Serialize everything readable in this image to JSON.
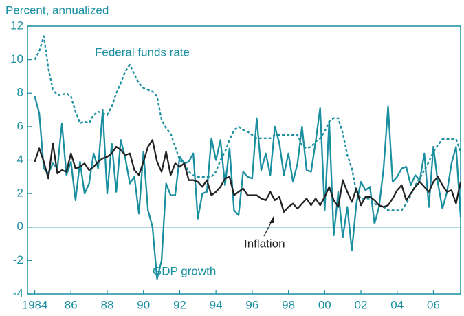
{
  "chart_data": {
    "type": "line",
    "y_label": "Percent, annualized",
    "x": [
      1984.0,
      1984.25,
      1984.5,
      1984.75,
      1985.0,
      1985.25,
      1985.5,
      1985.75,
      1986.0,
      1986.25,
      1986.5,
      1986.75,
      1987.0,
      1987.25,
      1987.5,
      1987.75,
      1988.0,
      1988.25,
      1988.5,
      1988.75,
      1989.0,
      1989.25,
      1989.5,
      1989.75,
      1990.0,
      1990.25,
      1990.5,
      1990.75,
      1991.0,
      1991.25,
      1991.5,
      1991.75,
      1992.0,
      1992.25,
      1992.5,
      1992.75,
      1993.0,
      1993.25,
      1993.5,
      1993.75,
      1994.0,
      1994.25,
      1994.5,
      1994.75,
      1995.0,
      1995.25,
      1995.5,
      1995.75,
      1996.0,
      1996.25,
      1996.5,
      1996.75,
      1997.0,
      1997.25,
      1997.5,
      1997.75,
      1998.0,
      1998.25,
      1998.5,
      1998.75,
      1999.0,
      1999.25,
      1999.5,
      1999.75,
      2000.0,
      2000.25,
      2000.5,
      2000.75,
      2001.0,
      2001.25,
      2001.5,
      2001.75,
      2002.0,
      2002.25,
      2002.5,
      2002.75,
      2003.0,
      2003.25,
      2003.5,
      2003.75,
      2004.0,
      2004.25,
      2004.5,
      2004.75,
      2005.0,
      2005.25,
      2005.5,
      2005.75,
      2006.0,
      2006.25,
      2006.5,
      2006.75,
      2007.0,
      2007.25,
      2007.5
    ],
    "series": [
      {
        "name": "Federal funds rate",
        "color": "#1a8fa0",
        "line_style": "dashed",
        "values": [
          10,
          10.5,
          11.4,
          9.5,
          8.2,
          7.9,
          7.9,
          8.0,
          7.8,
          6.9,
          6.2,
          6.3,
          6.2,
          6.7,
          6.9,
          6.8,
          6.7,
          7.2,
          8.0,
          8.6,
          9.3,
          9.7,
          9.1,
          8.6,
          8.3,
          8.2,
          8.1,
          7.8,
          6.4,
          5.9,
          5.6,
          4.8,
          4.0,
          3.8,
          3.3,
          3.1,
          3.0,
          3.0,
          3.0,
          3.0,
          3.3,
          4.0,
          4.5,
          5.2,
          5.8,
          6.0,
          5.8,
          5.7,
          5.5,
          5.3,
          5.3,
          5.3,
          5.3,
          5.5,
          5.5,
          5.5,
          5.5,
          5.5,
          5.5,
          4.9,
          4.7,
          4.8,
          5.1,
          5.3,
          5.7,
          6.3,
          6.5,
          6.5,
          5.6,
          4.3,
          3.5,
          2.1,
          1.7,
          1.7,
          1.7,
          1.4,
          1.25,
          1.2,
          1.0,
          1.0,
          1.0,
          1.0,
          1.4,
          1.9,
          2.5,
          2.9,
          3.4,
          3.9,
          4.5,
          4.9,
          5.25,
          5.25,
          5.25,
          5.25,
          4.5
        ]
      },
      {
        "name": "GDP growth",
        "color": "#1a8fa0",
        "line_style": "solid",
        "values": [
          7.8,
          6.8,
          3.5,
          3.2,
          3.8,
          3.5,
          6.2,
          3.1,
          3.9,
          1.6,
          3.9,
          2.0,
          2.6,
          4.4,
          3.5,
          7.0,
          2.0,
          5.0,
          2.1,
          5.2,
          4.1,
          2.6,
          3.0,
          0.8,
          4.5,
          1.0,
          0.0,
          -3.1,
          -2.0,
          2.6,
          1.9,
          1.9,
          4.2,
          3.8,
          3.9,
          4.4,
          0.5,
          2.0,
          2.1,
          5.3,
          4.0,
          5.2,
          2.5,
          4.7,
          1.0,
          0.7,
          3.3,
          3.0,
          2.9,
          6.5,
          3.4,
          4.4,
          3.1,
          6.0,
          5.0,
          3.1,
          4.4,
          2.7,
          3.8,
          6.0,
          3.4,
          3.3,
          5.1,
          7.1,
          1.0,
          6.3,
          -0.5,
          2.1,
          -0.6,
          1.2,
          -1.4,
          1.4,
          2.7,
          2.2,
          2.4,
          0.2,
          1.2,
          3.5,
          7.2,
          2.7,
          3.0,
          3.5,
          3.6,
          2.5,
          3.1,
          2.8,
          4.4,
          1.2,
          4.8,
          2.6,
          1.1,
          2.1,
          3.8,
          4.8,
          0.6
        ]
      },
      {
        "name": "Inflation",
        "color": "#222222",
        "line_style": "solid",
        "values": [
          3.9,
          4.7,
          3.9,
          2.9,
          5.0,
          3.2,
          3.4,
          3.3,
          4.4,
          3.5,
          3.6,
          3.8,
          3.4,
          3.6,
          3.9,
          4.1,
          4.2,
          4.4,
          4.8,
          4.6,
          4.3,
          4.4,
          3.4,
          3.1,
          3.9,
          4.8,
          5.2,
          3.9,
          3.3,
          4.5,
          3.1,
          3.8,
          3.6,
          3.8,
          2.8,
          2.8,
          2.7,
          2.4,
          2.8,
          1.9,
          2.1,
          2.4,
          2.9,
          3.0,
          1.9,
          2.1,
          2.3,
          1.9,
          1.9,
          1.9,
          1.7,
          1.6,
          2.1,
          1.6,
          1.8,
          0.9,
          1.2,
          1.4,
          1.1,
          1.4,
          1.7,
          1.3,
          1.7,
          1.3,
          1.8,
          2.4,
          1.6,
          1.2,
          2.8,
          2.1,
          1.5,
          2.3,
          1.3,
          1.8,
          1.8,
          1.6,
          1.3,
          1.2,
          1.3,
          1.7,
          2.2,
          2.5,
          1.6,
          2.0,
          2.4,
          2.7,
          2.4,
          2.1,
          2.7,
          3.0,
          2.5,
          2.1,
          2.2,
          1.4,
          2.7
        ]
      }
    ],
    "xlim": [
      1983.6,
      2007.5
    ],
    "xticks": [
      1984,
      {
        "value": 1986,
        "label": "86"
      },
      {
        "value": 1988,
        "label": "88"
      },
      {
        "value": 1990,
        "label": "90"
      },
      {
        "value": 1992,
        "label": "92"
      },
      {
        "value": 1994,
        "label": "94"
      },
      {
        "value": 1996,
        "label": "96"
      },
      {
        "value": 1998,
        "label": "98"
      },
      {
        "value": 2000,
        "label": "00"
      },
      {
        "value": 2002,
        "label": "02"
      },
      {
        "value": 2004,
        "label": "04"
      },
      {
        "value": 2006,
        "label": "06"
      }
    ],
    "ylim": [
      -4,
      12
    ],
    "yticks": [
      -4,
      -2,
      0,
      2,
      4,
      6,
      8,
      10,
      12
    ],
    "zero_line": true
  }
}
